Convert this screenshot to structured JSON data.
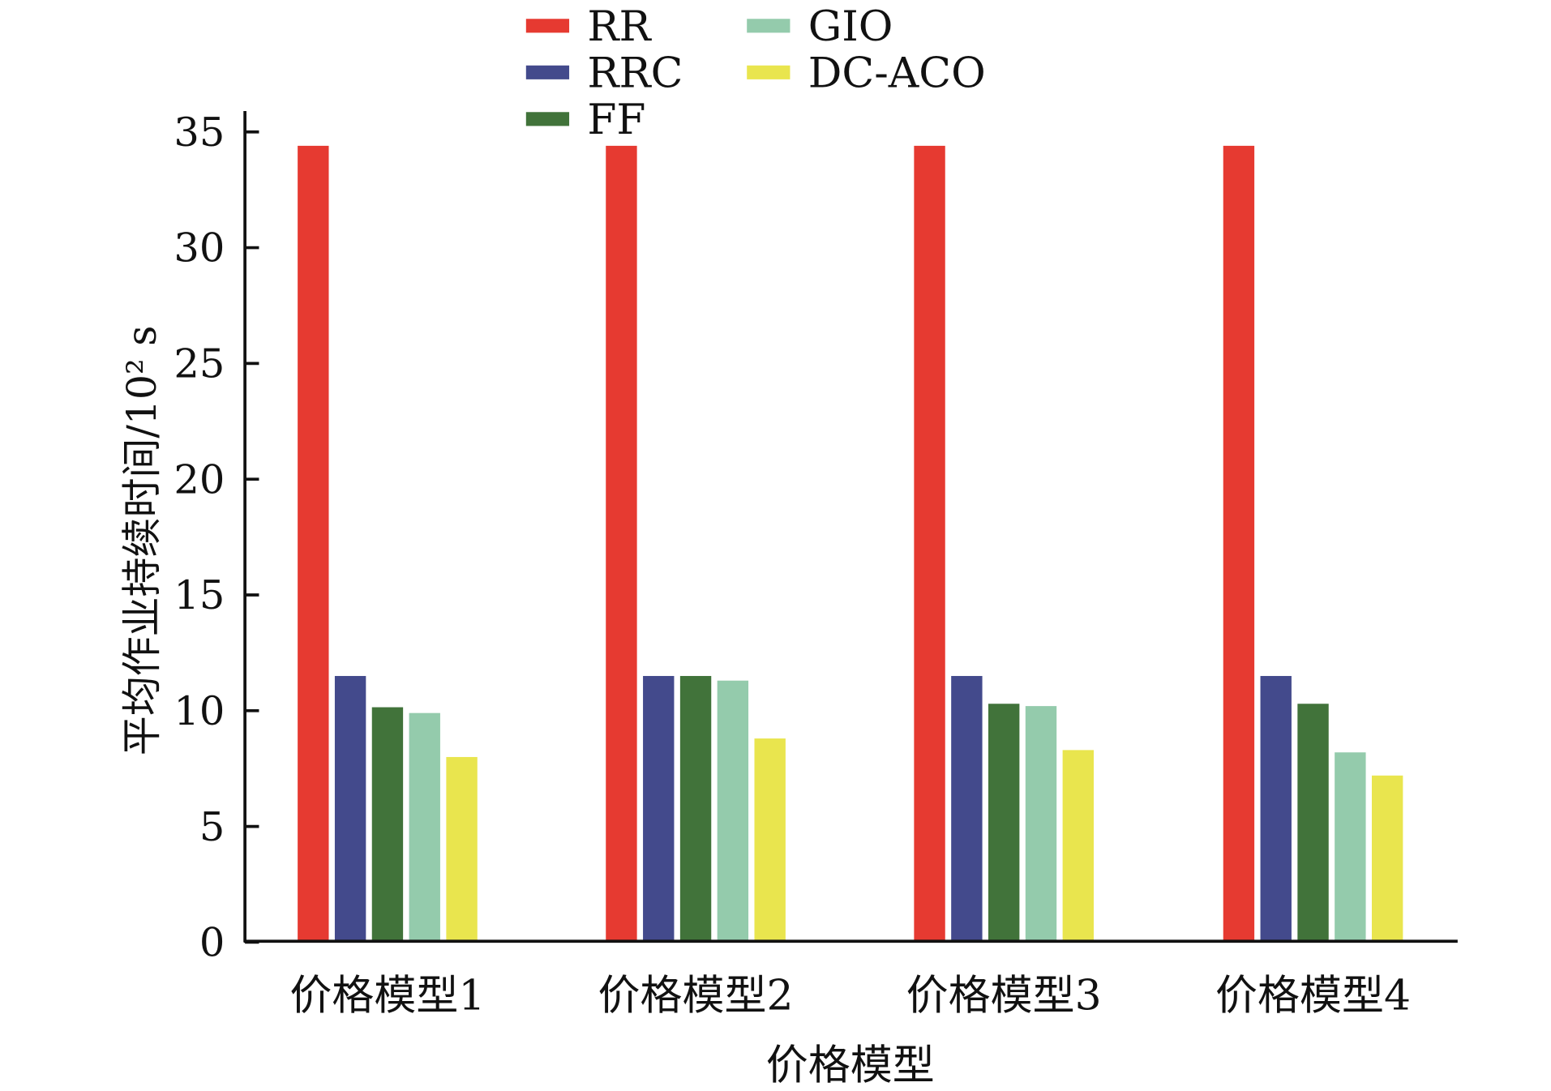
{
  "chart_data": {
    "type": "bar",
    "title": "",
    "xlabel": "价格模型",
    "ylabel": "平均作业持续时间/10² s",
    "ylim": [
      0,
      35
    ],
    "yticks": [
      0,
      5,
      10,
      15,
      20,
      25,
      30,
      35
    ],
    "categories": [
      "价格模型1",
      "价格模型2",
      "价格模型3",
      "价格模型4"
    ],
    "legend_position": "top",
    "series": [
      {
        "name": "RR",
        "color": "#e63a31",
        "values": [
          34.4,
          34.4,
          34.4,
          34.4
        ]
      },
      {
        "name": "RRC",
        "color": "#434a8c",
        "values": [
          11.5,
          11.5,
          11.5,
          11.5
        ]
      },
      {
        "name": "FF",
        "color": "#41733a",
        "values": [
          10.15,
          11.5,
          10.3,
          10.3
        ]
      },
      {
        "name": "GIO",
        "color": "#94cbac",
        "values": [
          9.9,
          11.3,
          10.2,
          8.2
        ]
      },
      {
        "name": "DC-ACO",
        "color": "#e9e54e",
        "values": [
          8.0,
          8.8,
          8.3,
          7.2
        ]
      }
    ]
  }
}
